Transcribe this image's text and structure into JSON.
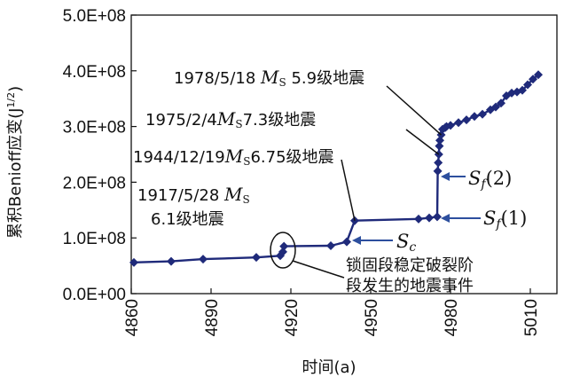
{
  "chart_data": {
    "type": "line",
    "title": "",
    "xlabel": "时间(a)",
    "ylabel": "累积Benioff应变(J",
    "ylabel_sup": "1/2",
    "ylabel_close": ")",
    "xlim": [
      4860,
      5020
    ],
    "ylim": [
      0,
      500000000
    ],
    "x_ticks": [
      4860,
      4890,
      4920,
      4950,
      4980,
      5010
    ],
    "y_ticks": [
      {
        "value": 0,
        "label": "0.0E+00"
      },
      {
        "value": 100000000,
        "label": "1.0E+08"
      },
      {
        "value": 200000000,
        "label": "2.0E+08"
      },
      {
        "value": 300000000,
        "label": "3.0E+08"
      },
      {
        "value": 400000000,
        "label": "4.0E+08"
      },
      {
        "value": 500000000,
        "label": "5.0E+08"
      }
    ],
    "grid": false,
    "series_color": "#1f2a7a",
    "arrow_color": "#2d4f9e",
    "series": [
      {
        "x": [
          4861,
          4875,
          4887,
          4907,
          4916,
          4917,
          4917.4,
          4935,
          4941,
          4944,
          4968,
          4972,
          4975,
          4975.2,
          4975.4,
          4975.6,
          4975.8,
          4976,
          4976.5,
          4977,
          4978,
          4978.5,
          4980,
          4983,
          4986,
          4989,
          4992,
          4995,
          4997,
          4999,
          5001,
          5003,
          5005,
          5007,
          5009,
          5011,
          5013
        ],
        "y": [
          56000000,
          58000000,
          62000000,
          65000000,
          68000000,
          75000000,
          85000000,
          86000000,
          93000000,
          131000000,
          134000000,
          136000000,
          138000000,
          220000000,
          235000000,
          250000000,
          265000000,
          275000000,
          285000000,
          295000000,
          298000000,
          300000000,
          302000000,
          307000000,
          312000000,
          318000000,
          322000000,
          330000000,
          335000000,
          342000000,
          355000000,
          360000000,
          362000000,
          365000000,
          375000000,
          385000000,
          393000000
        ]
      }
    ],
    "annotations": [
      {
        "date": "1978/5/18",
        "magnitude": "5.9级地震",
        "m": "M",
        "sub": "S"
      },
      {
        "date": "1975/2/4",
        "magnitude": "7.3级地震",
        "m": "M",
        "sub": "S"
      },
      {
        "date": "1944/12/19",
        "magnitude": "6.75级地震",
        "m": "M",
        "sub": "S"
      },
      {
        "date": "1917/5/28",
        "magnitude": "6.1级地震",
        "m": "M",
        "sub": "S"
      }
    ],
    "locked_segment_label_line1": "锁固段稳定破裂阶",
    "locked_segment_label_line2": "段发生的地震事件",
    "markers": [
      {
        "symbol": "S",
        "sub": "f",
        "paren": "(2)",
        "x": 4975,
        "y": 220000000
      },
      {
        "symbol": "S",
        "sub": "f",
        "paren": "(1)",
        "x": 4975,
        "y": 138000000
      },
      {
        "symbol": "S",
        "sub": "c",
        "paren": "",
        "x": 4941,
        "y": 93000000
      }
    ]
  }
}
